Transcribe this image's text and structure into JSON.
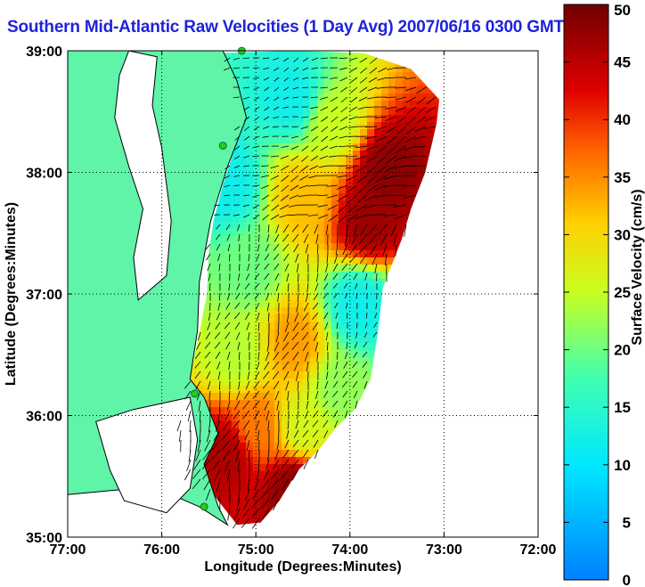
{
  "chart_data": {
    "type": "heatmap",
    "title": "Southern Mid-Atlantic Raw Velocities (1 Day Avg) 2007/06/16 0300 GMT",
    "xlabel": "Longitude (Degrees:Minutes)",
    "ylabel": "Latitude (Degrees:Minutes)",
    "colorbar_label": "Surface Velocity (cm/s)",
    "x_ticks": [
      {
        "value": -77,
        "label": "77:00"
      },
      {
        "value": -76,
        "label": "76:00"
      },
      {
        "value": -75,
        "label": "75:00"
      },
      {
        "value": -74,
        "label": "74:00"
      },
      {
        "value": -73,
        "label": "73:00"
      },
      {
        "value": -72,
        "label": "72:00"
      }
    ],
    "y_ticks": [
      {
        "value": 35,
        "label": "35:00"
      },
      {
        "value": 36,
        "label": "36:00"
      },
      {
        "value": 37,
        "label": "37:00"
      },
      {
        "value": 38,
        "label": "38:00"
      },
      {
        "value": 39,
        "label": "39:00"
      }
    ],
    "xlim": [
      -77,
      -72
    ],
    "ylim": [
      35,
      39
    ],
    "grid": true,
    "colorbar_ticks": [
      0,
      5,
      10,
      15,
      20,
      25,
      30,
      35,
      40,
      45,
      50
    ],
    "colorbar_range": [
      0,
      50
    ],
    "colormap": "jet",
    "land_color": "#5ff4a8",
    "arrow_color": "#000000",
    "station_color": "#22cc22",
    "velocity_regions": [
      {
        "lon": -74.6,
        "lat": 38.6,
        "speed_cm_s": 12
      },
      {
        "lon": -74.2,
        "lat": 38.4,
        "speed_cm_s": 25
      },
      {
        "lon": -73.6,
        "lat": 38.0,
        "speed_cm_s": 48
      },
      {
        "lon": -73.8,
        "lat": 37.6,
        "speed_cm_s": 47
      },
      {
        "lon": -74.5,
        "lat": 37.8,
        "speed_cm_s": 32
      },
      {
        "lon": -75.3,
        "lat": 37.9,
        "speed_cm_s": 12
      },
      {
        "lon": -75.1,
        "lat": 37.2,
        "speed_cm_s": 20
      },
      {
        "lon": -73.9,
        "lat": 36.9,
        "speed_cm_s": 12
      },
      {
        "lon": -74.6,
        "lat": 36.6,
        "speed_cm_s": 34
      },
      {
        "lon": -75.2,
        "lat": 36.5,
        "speed_cm_s": 24
      },
      {
        "lon": -74.1,
        "lat": 36.2,
        "speed_cm_s": 22
      },
      {
        "lon": -75.0,
        "lat": 35.9,
        "speed_cm_s": 36
      },
      {
        "lon": -75.3,
        "lat": 35.7,
        "speed_cm_s": 46
      },
      {
        "lon": -74.6,
        "lat": 35.4,
        "speed_cm_s": 48
      },
      {
        "lon": -74.5,
        "lat": 35.9,
        "speed_cm_s": 26
      }
    ]
  }
}
